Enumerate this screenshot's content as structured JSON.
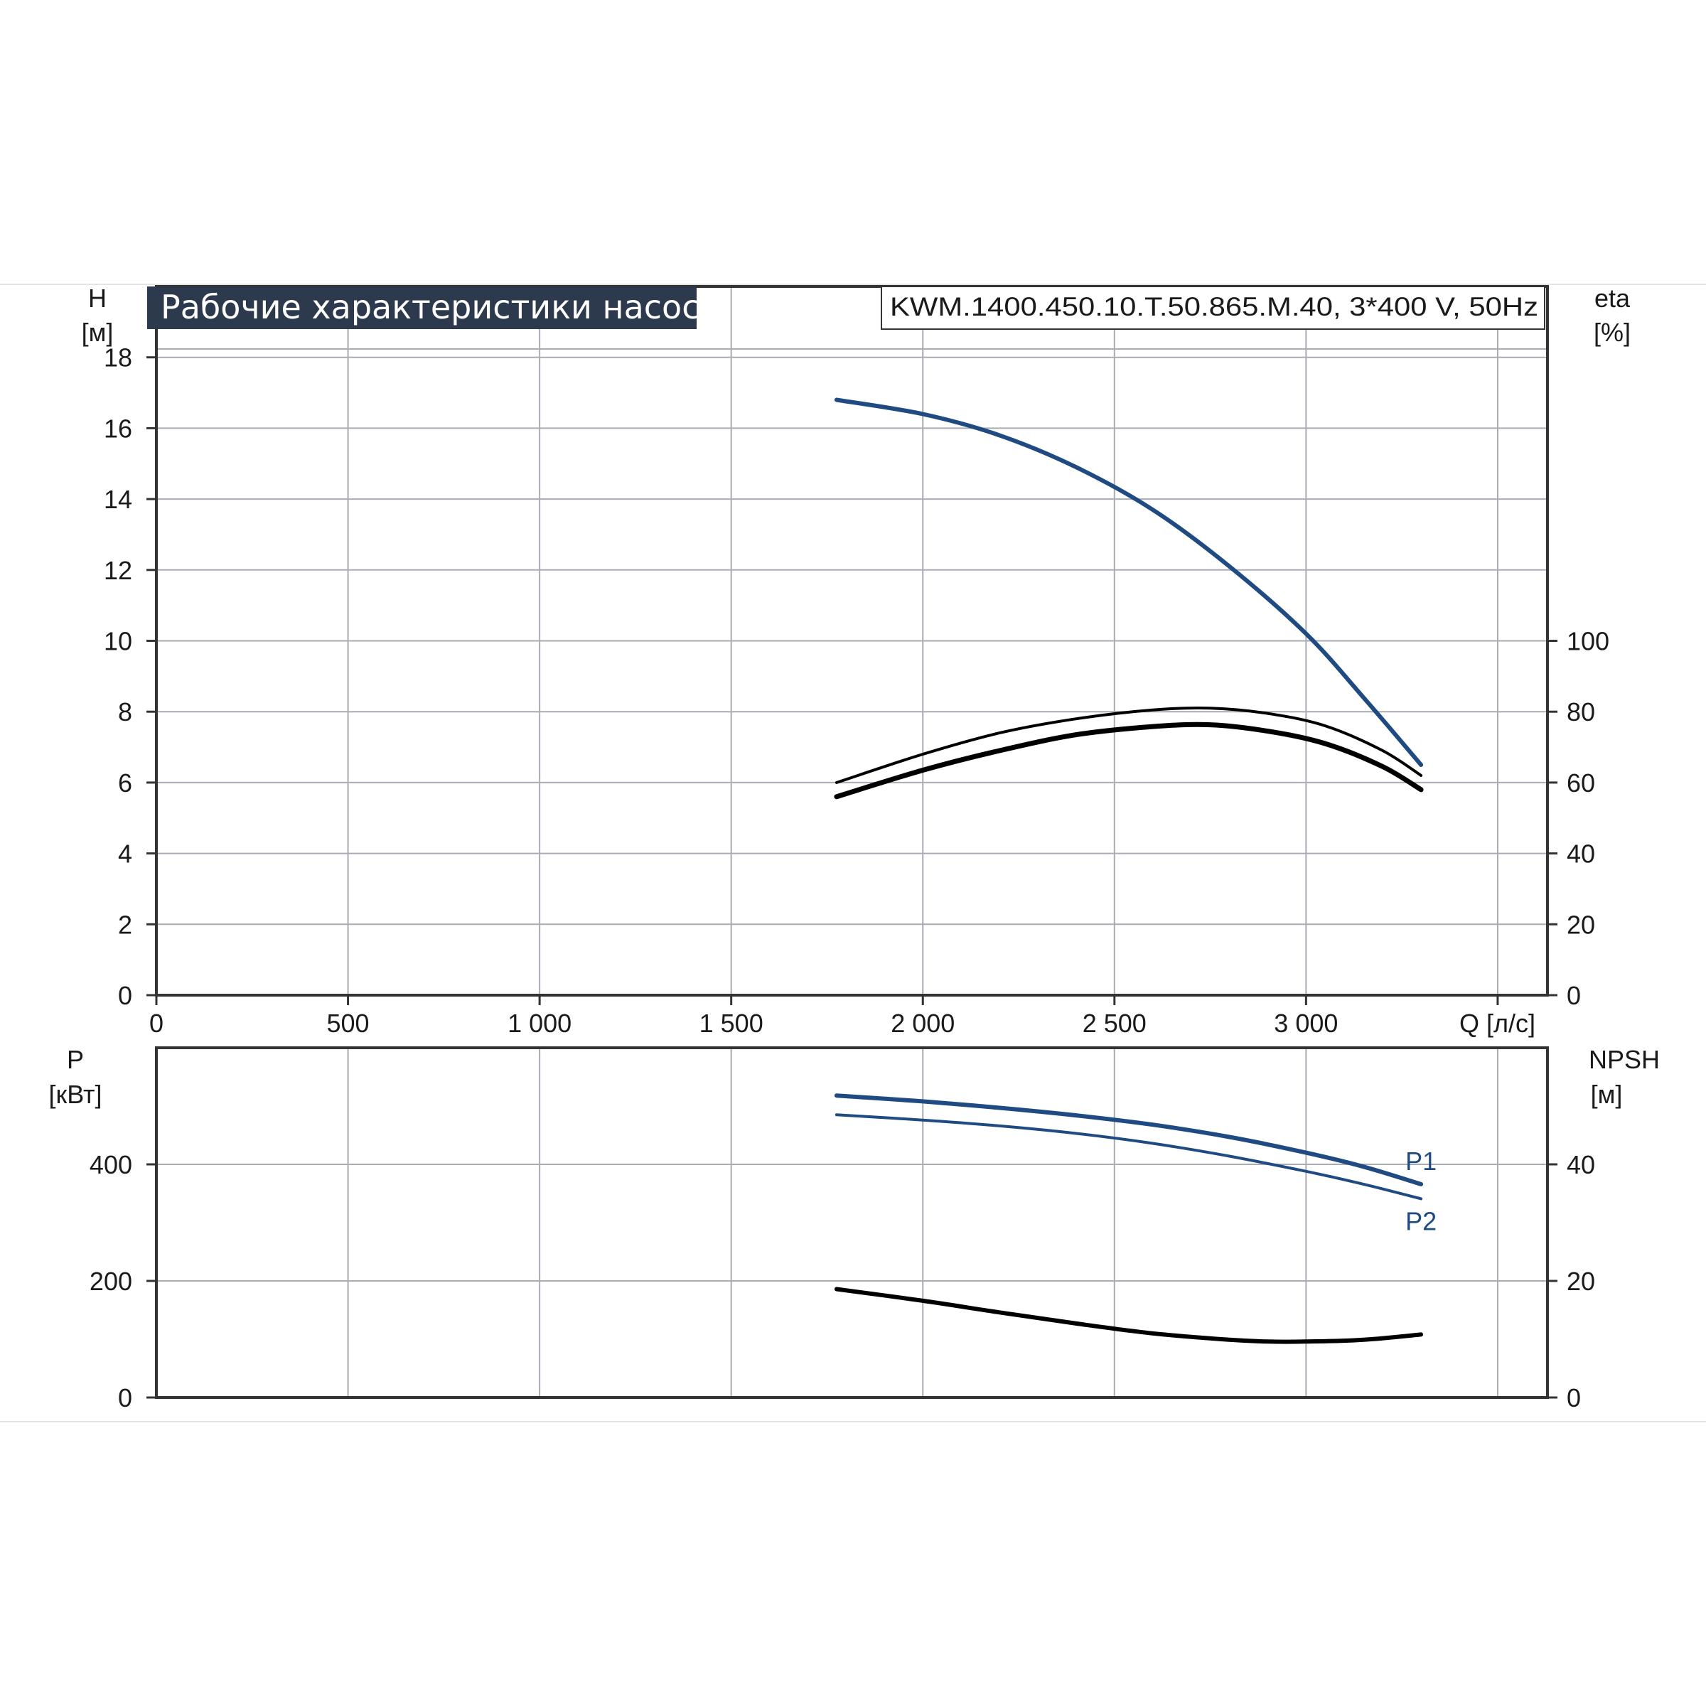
{
  "colors": {
    "blue": "#1f4b82",
    "black": "#000000",
    "grid": "#a9acb4",
    "axis": "#333333",
    "title_bg": "#2d3a4e"
  },
  "chart_data": [
    {
      "type": "line",
      "title": "Рабочие характеристики насоса",
      "subtitle": "KWM.1400.450.10.T.50.865.M.40, 3*400 V, 50Hz",
      "xlabel": "Q [л/с]",
      "ylabel": "H [м]",
      "ylabel_name": "H",
      "ylabel_unit": "[м]",
      "y2label": "eta [%]",
      "y2label_name": "eta",
      "y2label_unit": "[%]",
      "xlim": [
        0,
        3630
      ],
      "ylim": [
        0,
        20
      ],
      "y2lim": [
        0,
        200
      ],
      "x_ticks": [
        0,
        500,
        1000,
        1500,
        2000,
        2500,
        3000
      ],
      "x_tick_labels": [
        "0",
        "500",
        "1 000",
        "1 500",
        "2 000",
        "2 500",
        "3 000"
      ],
      "y_ticks": [
        0,
        2,
        4,
        6,
        8,
        10,
        12,
        14,
        16,
        18
      ],
      "y_tick_labels": [
        "0",
        "2",
        "4",
        "6",
        "8",
        "10",
        "12",
        "14",
        "16",
        "18"
      ],
      "y2_ticks": [
        0,
        20,
        40,
        60,
        80,
        100
      ],
      "y2_tick_labels": [
        "0",
        "20",
        "40",
        "60",
        "80",
        "100"
      ],
      "grid": true,
      "series": [
        {
          "axis": "left",
          "color": "#1f4b82",
          "x": [
            1775,
            2000,
            2200,
            2400,
            2600,
            2800,
            3000,
            3150,
            3300
          ],
          "y": [
            16.8,
            16.4,
            15.8,
            14.9,
            13.7,
            12.1,
            10.2,
            8.4,
            6.5
          ]
        },
        {
          "axis": "right",
          "color": "#000000",
          "x": [
            1775,
            2000,
            2200,
            2400,
            2600,
            2750,
            2900,
            3050,
            3200,
            3300
          ],
          "y": [
            60,
            68,
            74,
            78,
            80.5,
            81,
            79.5,
            76,
            69,
            62
          ]
        },
        {
          "axis": "right",
          "color": "#000000",
          "x": [
            1775,
            2000,
            2200,
            2400,
            2600,
            2750,
            2900,
            3050,
            3200,
            3300
          ],
          "y": [
            56,
            63.5,
            69,
            73.5,
            75.8,
            76.3,
            74.5,
            71,
            64.5,
            58
          ]
        }
      ]
    },
    {
      "type": "line",
      "xlabel": "",
      "ylabel": "P [кВт]",
      "ylabel_name": "P",
      "ylabel_unit": "[кВт]",
      "y2label": "NPSH [м]",
      "y2label_name": "NPSH",
      "y2label_unit": "[м]",
      "xlim": [
        0,
        3630
      ],
      "ylim": [
        0,
        600
      ],
      "y2lim": [
        0,
        60
      ],
      "y_ticks": [
        0,
        200,
        400
      ],
      "y_tick_labels": [
        "0",
        "200",
        "400"
      ],
      "y2_ticks": [
        0,
        20,
        40
      ],
      "y2_tick_labels": [
        "0",
        "20",
        "40"
      ],
      "grid": true,
      "series": [
        {
          "name": "P1",
          "axis": "left",
          "color": "#1f4b82",
          "x": [
            1775,
            2000,
            2200,
            2400,
            2600,
            2800,
            3000,
            3150,
            3300
          ],
          "y": [
            518,
            508,
            497,
            484,
            468,
            447,
            420,
            396,
            366
          ]
        },
        {
          "name": "P2",
          "axis": "left",
          "color": "#1f4b82",
          "x": [
            1775,
            2000,
            2200,
            2400,
            2600,
            2800,
            3000,
            3150,
            3300
          ],
          "y": [
            485,
            476,
            466,
            453,
            436,
            414,
            388,
            366,
            341
          ]
        },
        {
          "axis": "right",
          "color": "#000000",
          "x": [
            1775,
            2000,
            2200,
            2400,
            2600,
            2800,
            2900,
            3000,
            3150,
            3300
          ],
          "y": [
            18.6,
            16.6,
            14.6,
            12.7,
            11.0,
            9.9,
            9.6,
            9.6,
            9.9,
            10.8
          ]
        }
      ]
    }
  ]
}
